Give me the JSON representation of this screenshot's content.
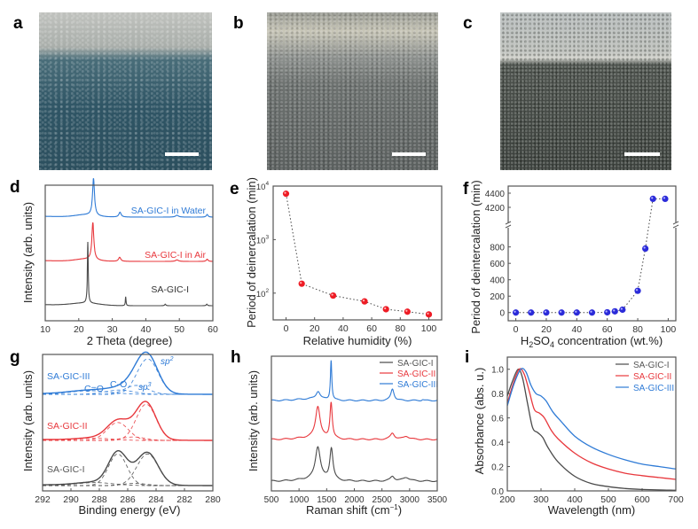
{
  "figure": {
    "panel_letters": [
      "a",
      "b",
      "c",
      "d",
      "e",
      "f",
      "g",
      "h",
      "i"
    ]
  },
  "photos": [
    {
      "panel": "a",
      "description": "SA-GIC film photo, bluish lower region, silver upper region",
      "colors": {
        "top": "#b9bcb8",
        "bottom": "#2f5565"
      },
      "has_scale_bar": true
    },
    {
      "panel": "b",
      "description": "SA-GIC film photo, grey textured surface with light flakes at top",
      "colors": {
        "top": "#b5b8ae",
        "bottom": "#5a5f5e"
      },
      "has_scale_bar": true
    },
    {
      "panel": "c",
      "description": "SA-GIC film photo, dark grainy surface with light grey top",
      "colors": {
        "top": "#bcc1c2",
        "bottom": "#3b403c"
      },
      "has_scale_bar": true
    }
  ],
  "colors": {
    "black": "#4a4a4a",
    "red": "#e8383d",
    "blue": "#2f7bd6",
    "marker_red": "#ee1c25",
    "marker_blue": "#2b2bd9",
    "axis": "#555555"
  },
  "chart_data": [
    {
      "panel": "d",
      "type": "line",
      "title": "",
      "xlabel": "2 Theta (degree)",
      "ylabel": "Intensity (arb. units)",
      "xlim": [
        10,
        60
      ],
      "xticks": [
        10,
        20,
        30,
        40,
        50,
        60
      ],
      "yticks": [],
      "series": [
        {
          "name": "SA-GIC-I in Water",
          "color": "blue",
          "offset": 2,
          "peaks": [
            [
              24.4,
              1.0,
              0.35
            ],
            [
              32.3,
              0.13,
              0.4
            ],
            [
              49.3,
              0.05,
              0.5
            ],
            [
              58.3,
              0.07,
              0.3
            ]
          ],
          "baseline_hump": [
            [
              22,
              0.06,
              3
            ]
          ]
        },
        {
          "name": "SA-GIC-I in Air",
          "color": "red",
          "offset": 1,
          "peaks": [
            [
              24.2,
              1.0,
              0.35
            ],
            [
              32.2,
              0.11,
              0.4
            ],
            [
              49.3,
              0.04,
              0.5
            ],
            [
              58.3,
              0.06,
              0.3
            ]
          ],
          "baseline_hump": [
            [
              22,
              0.06,
              3
            ]
          ]
        },
        {
          "name": "SA-GIC-I",
          "color": "black",
          "offset": 0,
          "peaks": [
            [
              22.7,
              1.15,
              0.15
            ],
            [
              34.0,
              0.17,
              0.12
            ],
            [
              45.8,
              0.03,
              0.2
            ],
            [
              58.2,
              0.03,
              0.2
            ]
          ],
          "baseline_hump": [
            [
              22,
              0.05,
              4
            ]
          ]
        }
      ]
    },
    {
      "panel": "e",
      "type": "scatter",
      "title": "",
      "xlabel": "Relative humidity (%)",
      "ylabel": "Period of deinercalation (min)",
      "xlim": [
        -9,
        109
      ],
      "ylim_log10": [
        1.5,
        4.0
      ],
      "yscale": "log",
      "xticks": [
        0,
        20,
        40,
        60,
        80,
        100
      ],
      "yticks": [
        "10^2",
        "10^3",
        "10^4"
      ],
      "x": [
        0,
        11,
        33,
        55,
        70,
        85,
        100
      ],
      "y": [
        7200,
        150,
        90,
        70,
        50,
        45,
        40
      ],
      "marker_color": "marker_red",
      "line_style": "dotted"
    },
    {
      "panel": "f",
      "type": "scatter",
      "title": "",
      "xlabel_main": "H",
      "xlabel_sub1": "2",
      "xlabel_mid": "SO",
      "xlabel_sub2": "4",
      "xlabel_tail": " concentration (wt.%)",
      "ylabel": "Period of deintercalation (min)",
      "xlim": [
        -5,
        105
      ],
      "broken_axis": true,
      "ylim_lower": [
        -100,
        980
      ],
      "ylim_upper": [
        4050,
        4500
      ],
      "xticks": [
        0,
        20,
        40,
        60,
        80,
        100
      ],
      "yticks_lower": [
        0,
        200,
        400,
        600,
        800
      ],
      "yticks_upper": [
        4200,
        4400
      ],
      "x": [
        0,
        10,
        20,
        30,
        40,
        50,
        60,
        65,
        70,
        80,
        85,
        90,
        98
      ],
      "y": [
        0,
        0,
        0,
        0,
        0,
        0,
        3,
        15,
        35,
        265,
        780,
        4320,
        4320
      ],
      "marker_color": "marker_blue",
      "line_style": "dotted"
    },
    {
      "panel": "g",
      "type": "line",
      "title": "",
      "xlabel": "Binding energy (eV)",
      "ylabel": "Intensity (arb. units)",
      "xlim": [
        292,
        280
      ],
      "xticks": [
        292,
        290,
        288,
        286,
        284,
        282,
        280
      ],
      "series": [
        {
          "name": "SA-GIC-III",
          "color": "blue",
          "offset": 2,
          "components": [
            [
              284.6,
              1.0,
              0.75
            ],
            [
              285.4,
              0.25,
              0.8
            ],
            [
              286.6,
              0.12,
              1.0
            ],
            [
              288.7,
              0.1,
              1.4
            ]
          ]
        },
        {
          "name": "SA-GIC-II",
          "color": "red",
          "offset": 1,
          "components": [
            [
              284.7,
              0.85,
              0.7
            ],
            [
              286.7,
              0.42,
              0.75
            ],
            [
              285.6,
              0.08,
              0.8
            ],
            [
              288.3,
              0.05,
              1.2
            ]
          ]
        },
        {
          "name": "SA-GIC-I",
          "color": "black",
          "offset": 0,
          "components": [
            [
              284.6,
              0.85,
              0.75
            ],
            [
              286.7,
              0.85,
              0.65
            ],
            [
              285.5,
              0.06,
              0.8
            ],
            [
              288.3,
              0.08,
              1.3
            ]
          ]
        }
      ],
      "annotations": [
        {
          "text": "C=O",
          "color": "blue"
        },
        {
          "text": "C-O",
          "color": "blue"
        },
        {
          "text": "sp",
          "sup": "3",
          "color": "blue"
        },
        {
          "text": "sp",
          "sup": "2",
          "color": "blue"
        }
      ]
    },
    {
      "panel": "h",
      "type": "line",
      "title": "",
      "xlabel": "Raman shift (cm",
      "xlabel_sup": "−1",
      "xlabel_end": ")",
      "ylabel": "Intensity (arb. units)",
      "xlim": [
        500,
        3500
      ],
      "xticks": [
        500,
        1000,
        1500,
        2000,
        2500,
        3000,
        3500
      ],
      "legend": [
        "SA-GIC-I",
        "SA-GIC-II",
        "SA-GIC-III"
      ],
      "legend_position": "top-right",
      "series": [
        {
          "name": "SA-GIC-III",
          "color": "blue",
          "offset": 2,
          "peaks": [
            [
              1345,
              0.15,
              45
            ],
            [
              1580,
              0.75,
              15
            ],
            [
              2690,
              0.22,
              35
            ],
            [
              3240,
              0.02,
              20
            ]
          ]
        },
        {
          "name": "SA-GIC-II",
          "color": "red",
          "offset": 1,
          "peaks": [
            [
              1340,
              0.6,
              50
            ],
            [
              1580,
              0.68,
              25
            ],
            [
              2690,
              0.12,
              45
            ],
            [
              2940,
              0.06,
              60
            ]
          ]
        },
        {
          "name": "SA-GIC-I",
          "color": "black",
          "offset": 0,
          "peaks": [
            [
              1340,
              0.62,
              55
            ],
            [
              1585,
              0.6,
              35
            ],
            [
              2690,
              0.09,
              45
            ],
            [
              2940,
              0.07,
              70
            ]
          ]
        }
      ]
    },
    {
      "panel": "i",
      "type": "line",
      "title": "",
      "xlabel": "Wavelength (nm)",
      "ylabel": "Absorbance (abs. u.)",
      "xlim": [
        200,
        700
      ],
      "ylim": [
        0.0,
        1.1
      ],
      "xticks": [
        200,
        300,
        400,
        500,
        600,
        700
      ],
      "yticks": [
        0.0,
        0.2,
        0.4,
        0.6,
        0.8,
        1.0
      ],
      "legend": [
        "SA-GIC-I",
        "SA-GIC-II",
        "SA-GIC-III"
      ],
      "legend_position": "top-right",
      "series": [
        {
          "name": "SA-GIC-I",
          "color": "black",
          "x": [
            200,
            215,
            232,
            245,
            260,
            275,
            290,
            305,
            320,
            350,
            400,
            450,
            500,
            550,
            600,
            650,
            700
          ],
          "y": [
            0.78,
            0.9,
            1.0,
            0.93,
            0.72,
            0.52,
            0.48,
            0.44,
            0.36,
            0.24,
            0.12,
            0.06,
            0.035,
            0.02,
            0.012,
            0.008,
            0.005
          ]
        },
        {
          "name": "SA-GIC-II",
          "color": "red",
          "x": [
            200,
            215,
            235,
            250,
            265,
            280,
            295,
            310,
            330,
            350,
            400,
            450,
            500,
            550,
            600,
            650,
            700
          ],
          "y": [
            0.72,
            0.86,
            1.0,
            0.96,
            0.82,
            0.67,
            0.64,
            0.6,
            0.5,
            0.43,
            0.31,
            0.23,
            0.18,
            0.145,
            0.125,
            0.11,
            0.095
          ]
        },
        {
          "name": "SA-GIC-III",
          "color": "blue",
          "x": [
            200,
            220,
            240,
            255,
            270,
            285,
            300,
            315,
            335,
            360,
            400,
            450,
            500,
            550,
            600,
            650,
            700
          ],
          "y": [
            0.7,
            0.88,
            1.0,
            0.98,
            0.87,
            0.8,
            0.78,
            0.74,
            0.65,
            0.57,
            0.45,
            0.36,
            0.3,
            0.255,
            0.22,
            0.2,
            0.18
          ]
        }
      ]
    }
  ]
}
